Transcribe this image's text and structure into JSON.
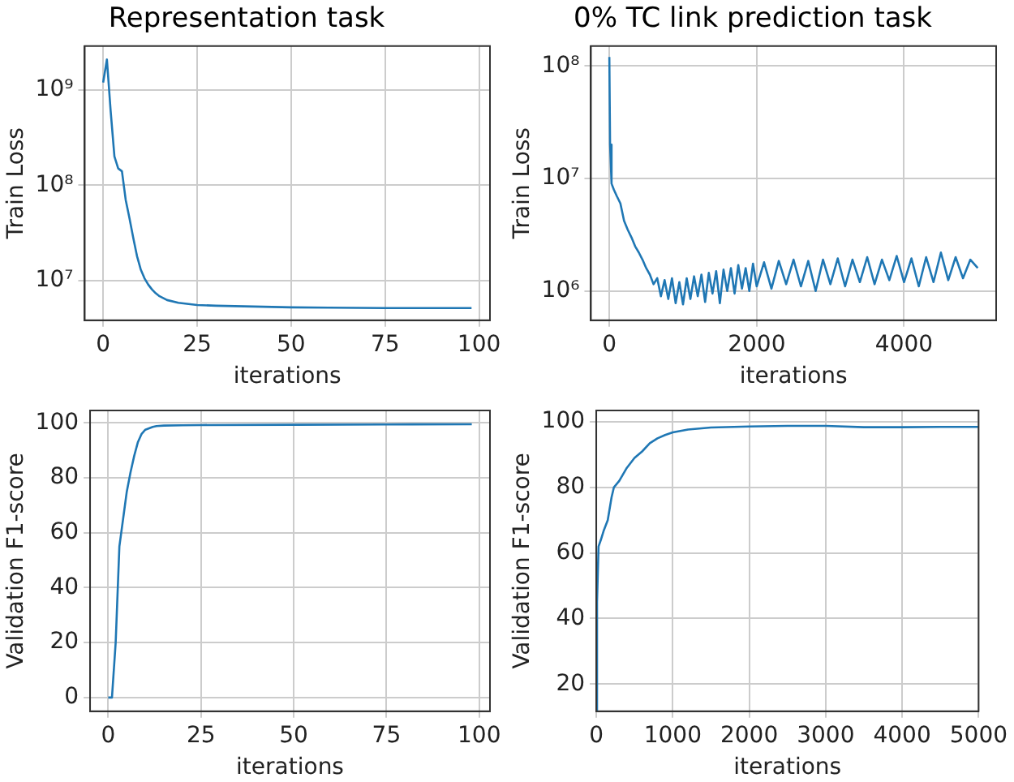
{
  "chart_data": [
    {
      "type": "line",
      "title": "Representation task",
      "xlabel": "iterations",
      "ylabel": "Train Loss",
      "log": "y",
      "grid": true,
      "xlim": [
        -4.9,
        102.9
      ],
      "xticks": [
        0,
        25,
        50,
        75,
        100
      ],
      "ylim": [
        3800000,
        2900000000
      ],
      "yticks": [
        {
          "value": 10000000,
          "label": "10⁷"
        },
        {
          "value": 100000000,
          "label": "10⁸"
        },
        {
          "value": 1000000000,
          "label": "10⁹"
        }
      ],
      "series": [
        {
          "color": "#1f77b4",
          "x": [
            0,
            1,
            2,
            3,
            4,
            5,
            6,
            7,
            8,
            9,
            10,
            11,
            12,
            13,
            14,
            15,
            17,
            20,
            25,
            30,
            40,
            50,
            60,
            75,
            98
          ],
          "values": [
            1200000000,
            2100000000,
            600000000,
            200000000,
            150000000,
            140000000,
            70000000,
            45000000,
            28000000,
            18000000,
            13000000,
            10500000,
            9000000,
            8000000,
            7300000,
            6800000,
            6200000,
            5800000,
            5500000,
            5400000,
            5300000,
            5200000,
            5150000,
            5100000,
            5100000
          ]
        }
      ]
    },
    {
      "type": "line",
      "title": "0% TC link prediction task",
      "xlabel": "iterations",
      "ylabel": "Train Loss",
      "log": "y",
      "grid": true,
      "xlim": [
        -250,
        5250
      ],
      "xticks": [
        0,
        2000,
        4000
      ],
      "ylim": [
        550000,
        150000000
      ],
      "yticks": [
        {
          "value": 1000000,
          "label": "10⁶"
        },
        {
          "value": 10000000,
          "label": "10⁷"
        },
        {
          "value": 100000000,
          "label": "10⁸"
        }
      ],
      "series": [
        {
          "color": "#1f77b4",
          "x": [
            0,
            10,
            30,
            60,
            100,
            150,
            200,
            250,
            300,
            350,
            400,
            450,
            500,
            550,
            600,
            650,
            700,
            750,
            800,
            850,
            900,
            950,
            1000,
            1050,
            1100,
            1150,
            1200,
            1250,
            1300,
            1350,
            1400,
            1450,
            1500,
            1550,
            1600,
            1650,
            1700,
            1750,
            1800,
            1850,
            1900,
            1950,
            2000,
            2100,
            2200,
            2300,
            2400,
            2500,
            2600,
            2700,
            2800,
            2900,
            3000,
            3100,
            3200,
            3300,
            3400,
            3500,
            3600,
            3700,
            3800,
            3900,
            4000,
            4100,
            4200,
            4300,
            4400,
            4500,
            4600,
            4700,
            4800,
            4900,
            5000
          ],
          "values": [
            120000000,
            20000000,
            9000000,
            8000000,
            7000000,
            6000000,
            4200000,
            3500000,
            3000000,
            2500000,
            2200000,
            1900000,
            1600000,
            1400000,
            1150000,
            1300000,
            900000,
            1250000,
            850000,
            1300000,
            780000,
            1200000,
            760000,
            1300000,
            850000,
            1350000,
            900000,
            1400000,
            800000,
            1450000,
            950000,
            1500000,
            780000,
            1550000,
            1000000,
            1600000,
            950000,
            1700000,
            1050000,
            1600000,
            1000000,
            1750000,
            1100000,
            1800000,
            1050000,
            1850000,
            1150000,
            1900000,
            1100000,
            1850000,
            1000000,
            1900000,
            1150000,
            1950000,
            1100000,
            1900000,
            1200000,
            2000000,
            1150000,
            1900000,
            1250000,
            2050000,
            1200000,
            1950000,
            1100000,
            2000000,
            1200000,
            2200000,
            1250000,
            2000000,
            1300000,
            1900000,
            1600000
          ]
        }
      ]
    },
    {
      "type": "line",
      "xlabel": "iterations",
      "ylabel": "Validation F1-score",
      "grid": true,
      "xlim": [
        -4.9,
        102.9
      ],
      "xticks": [
        0,
        25,
        50,
        75,
        100
      ],
      "ylim": [
        -5,
        104.5
      ],
      "yticks": [
        0,
        20,
        40,
        60,
        80,
        100
      ],
      "series": [
        {
          "color": "#1f77b4",
          "x": [
            0,
            1,
            2,
            3,
            4,
            5,
            6,
            7,
            8,
            9,
            10,
            11,
            12,
            13,
            15,
            20,
            25,
            50,
            75,
            98
          ],
          "values": [
            0,
            0,
            20,
            55,
            65,
            75,
            82,
            88,
            93,
            96,
            97.5,
            98,
            98.5,
            98.8,
            99,
            99.1,
            99.2,
            99.3,
            99.4,
            99.5
          ]
        }
      ]
    },
    {
      "type": "line",
      "xlabel": "iterations",
      "ylabel": "Validation F1-score",
      "grid": true,
      "xlim": [
        0,
        5000
      ],
      "xticks": [
        0,
        1000,
        2000,
        3000,
        4000,
        5000
      ],
      "ylim": [
        11.7,
        103.5
      ],
      "yticks": [
        20,
        40,
        60,
        80,
        100
      ],
      "series": [
        {
          "color": "#1f77b4",
          "x": [
            0,
            10,
            30,
            60,
            100,
            150,
            200,
            230,
            300,
            400,
            500,
            600,
            700,
            800,
            900,
            1000,
            1200,
            1500,
            2000,
            2500,
            3000,
            3500,
            4000,
            4500,
            5000
          ],
          "values": [
            12,
            45,
            62,
            64,
            67,
            70,
            77,
            80,
            82,
            86,
            89,
            91,
            93.5,
            95,
            96,
            96.8,
            97.7,
            98.3,
            98.6,
            98.8,
            98.8,
            98.4,
            98.4,
            98.5,
            98.5
          ]
        }
      ]
    }
  ]
}
